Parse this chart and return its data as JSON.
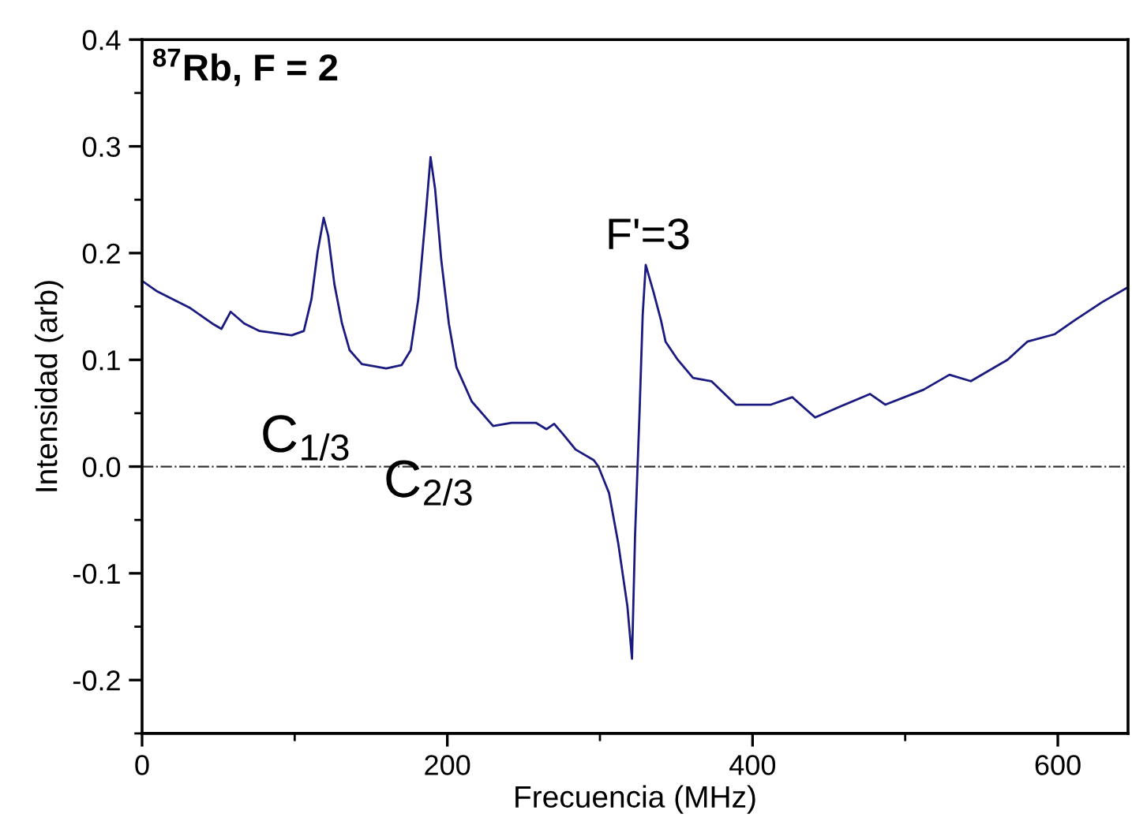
{
  "chart_data": {
    "type": "line",
    "xlabel": "Frecuencia (MHz)",
    "ylabel": "Intensidad (arb)",
    "annotations": [
      "$^{87}$Rb, F = 2",
      "C$_{1/3}$",
      "C$_{2/3}$",
      "F'=3"
    ],
    "series": [
      {
        "color": "#1a1a80",
        "x": [
          0,
          10,
          31,
          46,
          52,
          58,
          67,
          77,
          98,
          106,
          111,
          115,
          119,
          122,
          126,
          131,
          136,
          144,
          160,
          170,
          176,
          181,
          186,
          189,
          192,
          196,
          201,
          206,
          216,
          230,
          242,
          258,
          265,
          270,
          276,
          284,
          296,
          299,
          306,
          312,
          318,
          321,
          323,
          326,
          328,
          330,
          335,
          340,
          343,
          351,
          361,
          373,
          389,
          412,
          426,
          441,
          457,
          477,
          487,
          512,
          529,
          543,
          567,
          580,
          598,
          611,
          629,
          646
        ],
        "values": [
          0.174,
          0.164,
          0.149,
          0.134,
          0.129,
          0.145,
          0.134,
          0.127,
          0.123,
          0.127,
          0.157,
          0.201,
          0.233,
          0.216,
          0.171,
          0.134,
          0.109,
          0.096,
          0.092,
          0.095,
          0.109,
          0.157,
          0.238,
          0.29,
          0.26,
          0.194,
          0.134,
          0.093,
          0.061,
          0.038,
          0.041,
          0.041,
          0.035,
          0.04,
          0.03,
          0.016,
          0.006,
          0.0,
          -0.025,
          -0.072,
          -0.131,
          -0.18,
          -0.065,
          0.053,
          0.142,
          0.189,
          0.164,
          0.137,
          0.117,
          0.1,
          0.083,
          0.08,
          0.058,
          0.058,
          0.065,
          0.046,
          0.056,
          0.068,
          0.058,
          0.072,
          0.086,
          0.08,
          0.1,
          0.117,
          0.124,
          0.137,
          0.154,
          0.168
        ]
      }
    ],
    "xlim": [
      0,
      646
    ],
    "ylim": [
      -0.25,
      0.4
    ],
    "xticks": [
      0,
      {
        "value": 100,
        "label": null
      },
      200,
      {
        "value": 300,
        "label": null
      },
      400,
      {
        "value": 500,
        "label": null
      },
      600
    ],
    "yticks": [
      {
        "value": -0.25,
        "label": null
      },
      -0.2,
      {
        "value": -0.15,
        "label": null
      },
      -0.1,
      {
        "value": -0.05,
        "label": null
      },
      {
        "value": 0,
        "label": "0.0"
      },
      {
        "value": 0.05,
        "label": null
      },
      0.1,
      {
        "value": 0.15,
        "label": null
      },
      0.2,
      {
        "value": 0.25,
        "label": null
      },
      0.3,
      {
        "value": 0.35,
        "label": null
      },
      0.4
    ],
    "ref_lines": [
      {
        "axis": "y",
        "value": 0,
        "color": "#333333",
        "line_style": "dashdot"
      }
    ],
    "grid": false,
    "legend": false,
    "marker": "none",
    "line_style": "solid"
  }
}
